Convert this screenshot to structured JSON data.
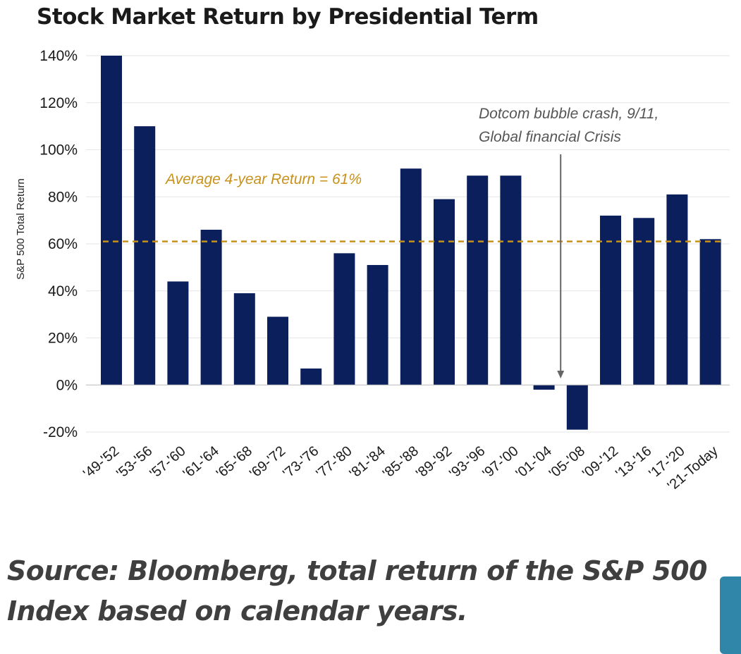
{
  "title": "Stock Market Return by Presidential Term",
  "source_note": "Source: Bloomberg, total return of the S&P 500 Index based on calendar years.",
  "colors": {
    "bar": "#0a1f5c",
    "average_line": "#c8921a",
    "annotation_text": "#555555",
    "annotation_arrow": "#666666",
    "grid": "#e6e6e6",
    "side_tab": "#2f86a8"
  },
  "chart_data": {
    "type": "bar",
    "title": "Stock Market Return by Presidential Term",
    "ylabel": "S&P 500 Total Return",
    "xlabel": "",
    "ylim": [
      -20,
      140
    ],
    "yticks": [
      -20,
      0,
      20,
      40,
      60,
      80,
      100,
      120,
      140
    ],
    "ytick_labels": [
      "-20%",
      "0%",
      "20%",
      "40%",
      "60%",
      "80%",
      "100%",
      "120%",
      "140%"
    ],
    "grid": true,
    "categories": [
      "'49-'52",
      "'53-'56",
      "'57-'60",
      "'61-'64",
      "'65-'68",
      "'69-'72",
      "'73-'76",
      "'77-'80",
      "'81-'84",
      "'85-'88",
      "'89-'92",
      "'93-'96",
      "'97-'00",
      "'01-'04",
      "'05-'08",
      "'09-'12",
      "'13-'16",
      "'17-'20",
      "'21-Today"
    ],
    "values": [
      140,
      110,
      44,
      66,
      39,
      29,
      7,
      56,
      51,
      92,
      79,
      89,
      89,
      -2,
      -19,
      72,
      71,
      81,
      62
    ],
    "average": {
      "value": 61,
      "label": "Average 4-year Return = 61%"
    },
    "annotation": {
      "text_lines": [
        "Dotcom bubble crash, 9/11,",
        "Global financial Crisis"
      ],
      "x_between": [
        "'01-'04",
        "'05-'08"
      ]
    }
  }
}
